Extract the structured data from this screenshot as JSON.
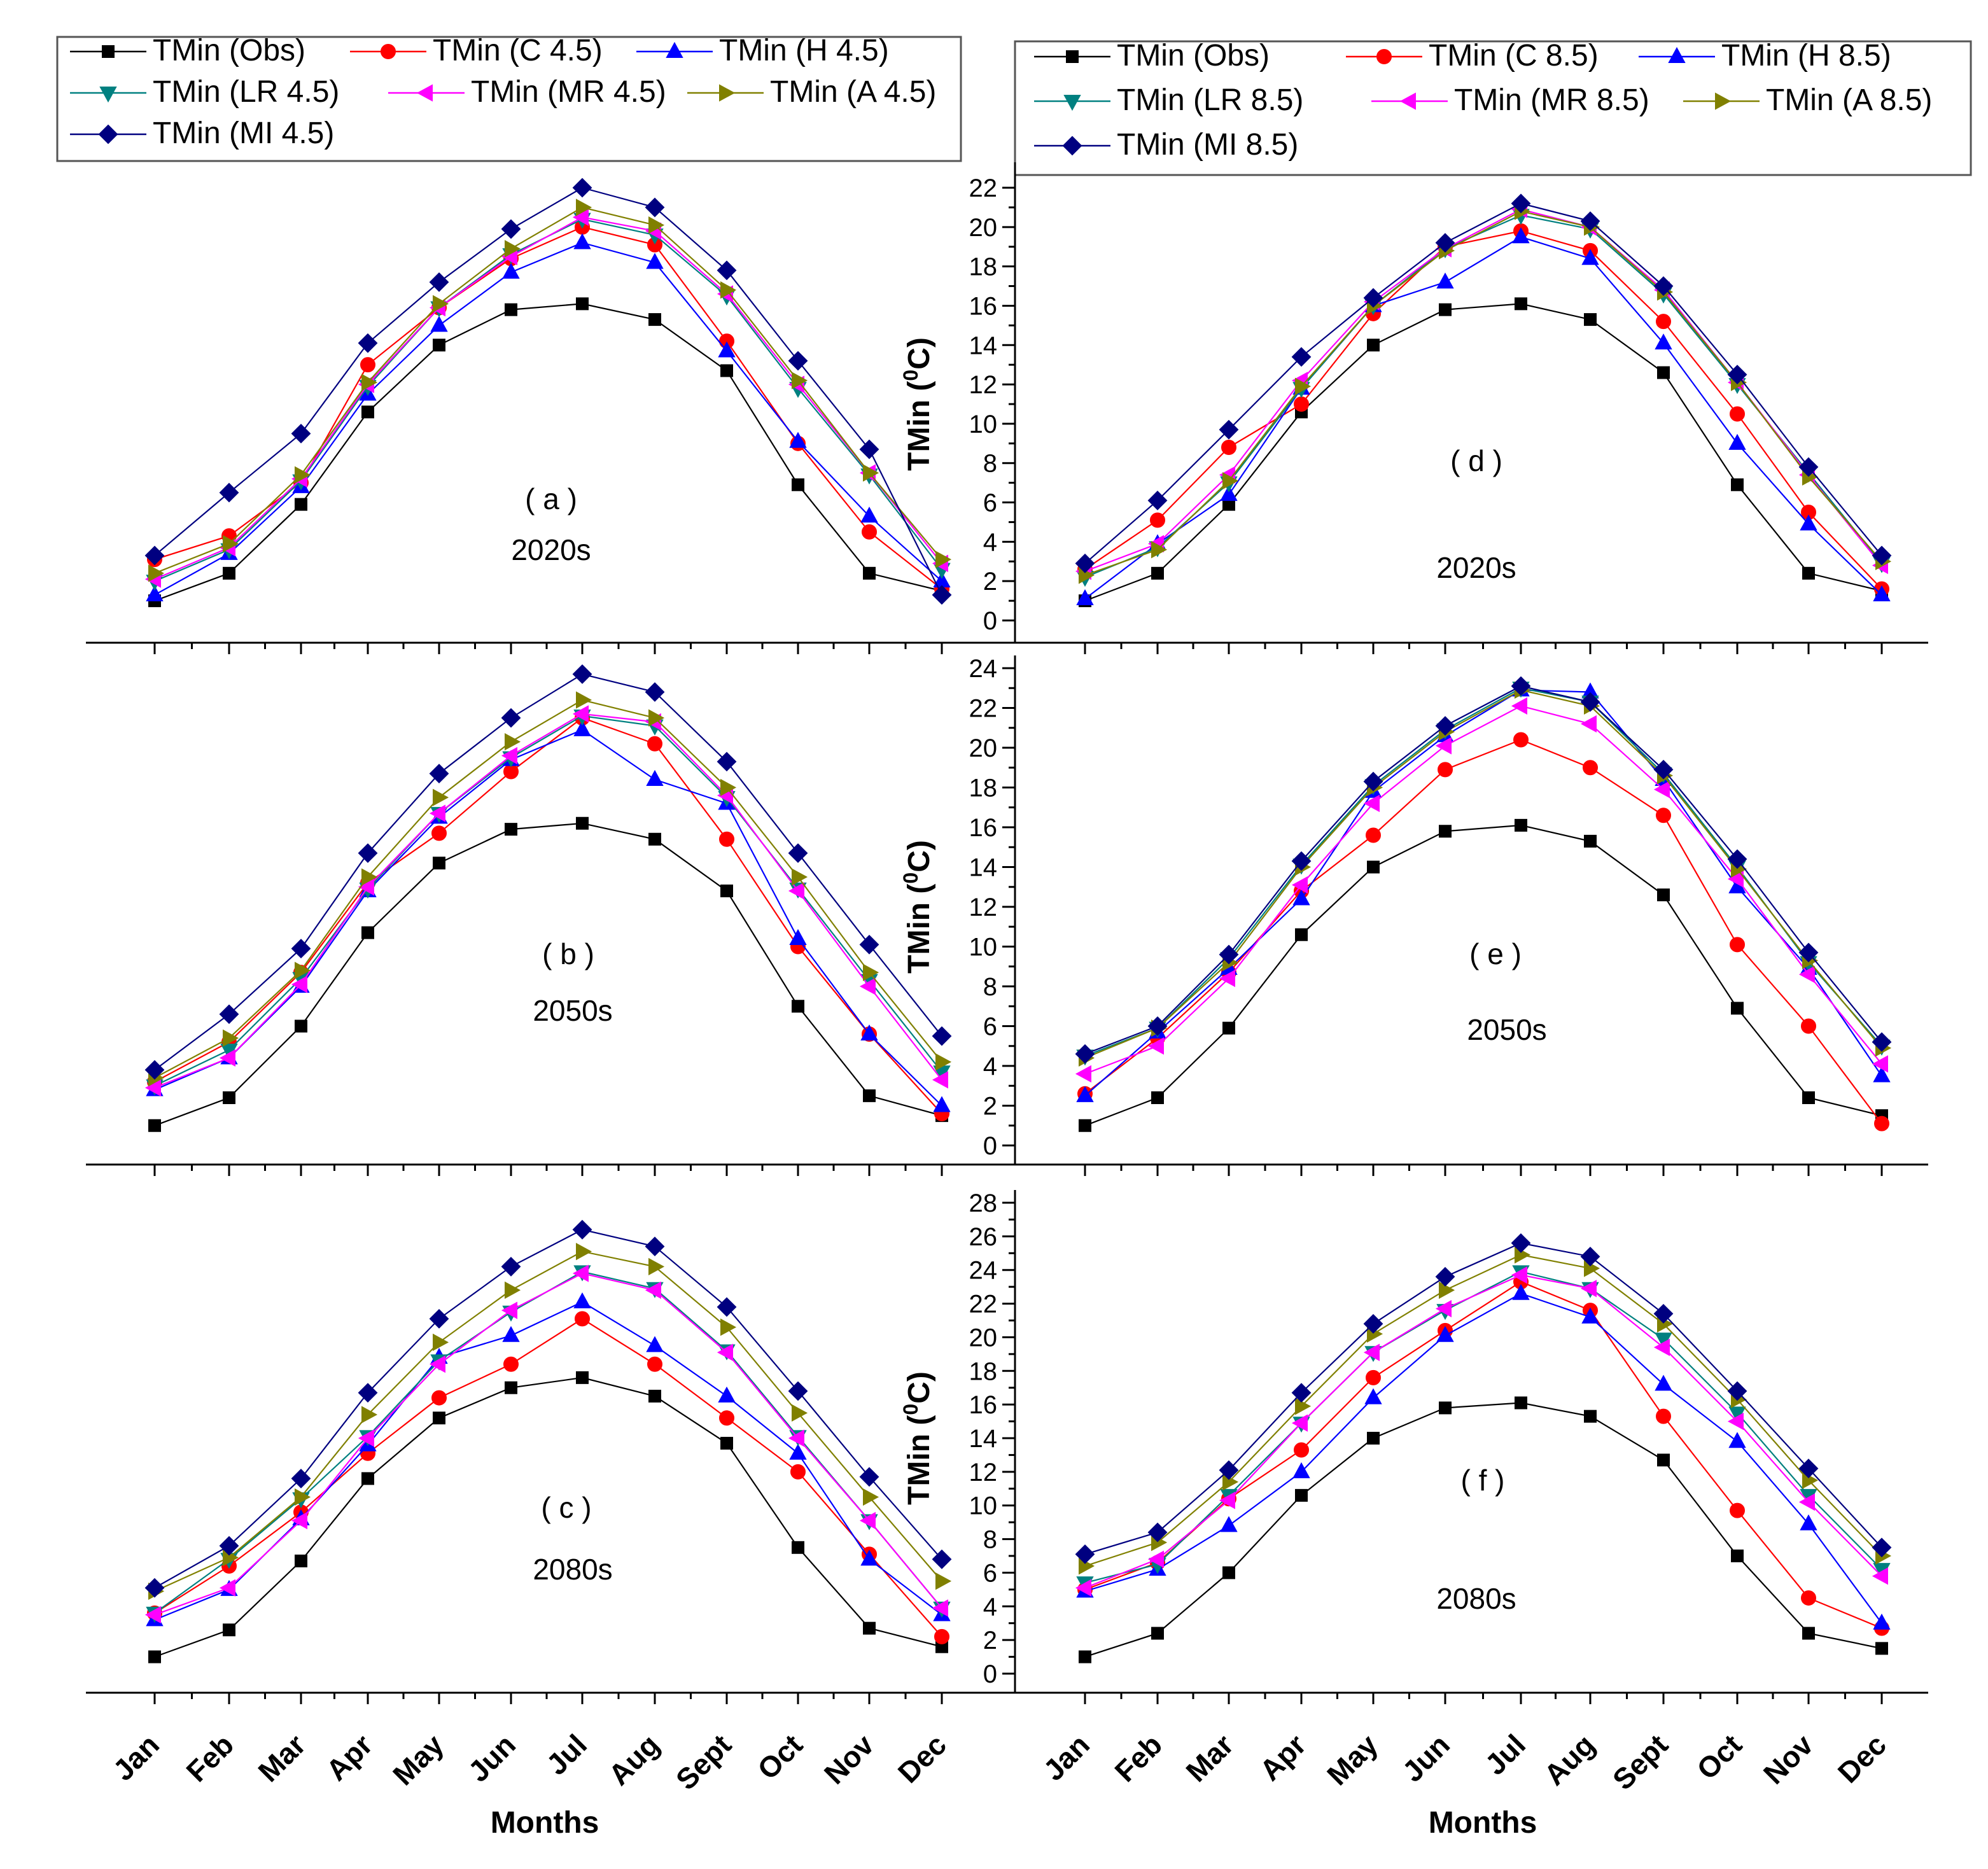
{
  "chart_data": {
    "type": "line",
    "months": [
      "Jan",
      "Feb",
      "Mar",
      "Apr",
      "May",
      "Jun",
      "Jul",
      "Aug",
      "Sept",
      "Oct",
      "Nov",
      "Dec"
    ],
    "xlabel": "Months",
    "ylabel": "TMin (0C)",
    "ylabel_main": "TMin (",
    "ylabel_sup": "0",
    "ylabel_end": "C)",
    "styles": {
      "Obs": {
        "color": "#000000",
        "marker": "square"
      },
      "C": {
        "color": "#ff0000",
        "marker": "circle"
      },
      "H": {
        "color": "#0000ff",
        "marker": "triangle-up"
      },
      "LR": {
        "color": "#008080",
        "marker": "triangle-down"
      },
      "MR": {
        "color": "#ff00ff",
        "marker": "triangle-left"
      },
      "A": {
        "color": "#808000",
        "marker": "triangle-right"
      },
      "MI": {
        "color": "#000080",
        "marker": "diamond"
      }
    },
    "legends": [
      {
        "scenario": "4.5",
        "entries": [
          {
            "key": "Obs",
            "label": "TMin (Obs)"
          },
          {
            "key": "C",
            "label": "TMin (C 4.5)"
          },
          {
            "key": "H",
            "label": "TMin (H 4.5)"
          },
          {
            "key": "LR",
            "label": "TMin (LR 4.5)"
          },
          {
            "key": "MR",
            "label": "TMin (MR 4.5)"
          },
          {
            "key": "A",
            "label": "TMin (A 4.5)"
          },
          {
            "key": "MI",
            "label": "TMin (MI 4.5)"
          }
        ]
      },
      {
        "scenario": "8.5",
        "entries": [
          {
            "key": "Obs",
            "label": "TMin (Obs)"
          },
          {
            "key": "C",
            "label": "TMin (C 8.5)"
          },
          {
            "key": "H",
            "label": "TMin (H 8.5)"
          },
          {
            "key": "LR",
            "label": "TMin (LR 8.5)"
          },
          {
            "key": "MR",
            "label": "TMin (MR 8.5)"
          },
          {
            "key": "A",
            "label": "TMin (A 8.5)"
          },
          {
            "key": "MI",
            "label": "TMin (MI 8.5)"
          }
        ]
      }
    ],
    "panels": [
      {
        "id": "a",
        "label": "( a )",
        "period": "2020s",
        "scenario": "4.5",
        "ylim": [
          0,
          22
        ],
        "series": {
          "Obs": [
            1.0,
            2.4,
            5.9,
            10.6,
            14.0,
            15.8,
            16.1,
            15.3,
            12.7,
            6.9,
            2.4,
            1.5
          ],
          "C": [
            3.1,
            4.3,
            7.0,
            13.0,
            15.9,
            18.4,
            20.0,
            19.1,
            14.2,
            9.0,
            4.5,
            1.6
          ],
          "H": [
            1.3,
            3.4,
            6.8,
            11.5,
            15.0,
            17.7,
            19.2,
            18.2,
            13.7,
            9.1,
            5.3,
            2.0
          ],
          "LR": [
            2.0,
            3.6,
            7.1,
            11.9,
            15.9,
            18.6,
            20.4,
            19.6,
            16.5,
            11.8,
            7.4,
            2.6
          ],
          "MR": [
            2.1,
            3.7,
            7.2,
            12.0,
            15.9,
            18.5,
            20.5,
            19.8,
            16.6,
            12.0,
            7.5,
            2.9
          ],
          "A": [
            2.4,
            3.9,
            7.4,
            12.1,
            16.1,
            18.9,
            21.0,
            20.1,
            16.8,
            12.2,
            7.5,
            3.1
          ],
          "MI": [
            3.3,
            6.5,
            9.5,
            14.1,
            17.2,
            19.9,
            22.0,
            21.0,
            17.8,
            13.2,
            8.7,
            1.3
          ]
        }
      },
      {
        "id": "d",
        "label": "( d )",
        "period": "2020s",
        "scenario": "8.5",
        "ylim": [
          0,
          22
        ],
        "series": {
          "Obs": [
            1.0,
            2.4,
            5.9,
            10.6,
            14.0,
            15.8,
            16.1,
            15.3,
            12.6,
            6.9,
            2.4,
            1.5
          ],
          "C": [
            2.6,
            5.1,
            8.8,
            11.0,
            15.6,
            19.0,
            19.8,
            18.8,
            15.2,
            10.5,
            5.5,
            1.6
          ],
          "H": [
            1.1,
            3.9,
            6.4,
            11.8,
            16.0,
            17.2,
            19.5,
            18.4,
            14.1,
            9.0,
            4.9,
            1.3
          ],
          "LR": [
            2.2,
            3.7,
            7.0,
            11.8,
            16.0,
            18.9,
            20.6,
            19.9,
            16.6,
            12.0,
            7.5,
            2.9
          ],
          "MR": [
            2.5,
            3.9,
            7.4,
            12.2,
            16.2,
            18.9,
            20.9,
            20.0,
            16.8,
            12.1,
            7.4,
            2.8
          ],
          "A": [
            2.3,
            3.6,
            7.1,
            11.9,
            16.0,
            18.8,
            20.8,
            20.0,
            16.7,
            12.1,
            7.3,
            3.0
          ],
          "MI": [
            2.9,
            6.1,
            9.7,
            13.4,
            16.4,
            19.2,
            21.2,
            20.3,
            17.0,
            12.5,
            7.8,
            3.3
          ]
        }
      },
      {
        "id": "b",
        "label": "( b )",
        "period": "2050s",
        "scenario": "4.5",
        "ylim": [
          0,
          24
        ],
        "series": {
          "Obs": [
            1.0,
            2.4,
            6.0,
            10.7,
            14.2,
            15.9,
            16.2,
            15.4,
            12.8,
            7.0,
            2.5,
            1.5
          ],
          "C": [
            3.2,
            5.2,
            8.7,
            13.2,
            15.7,
            18.8,
            21.5,
            20.2,
            15.4,
            10.0,
            5.6,
            1.6
          ],
          "H": [
            2.8,
            4.4,
            8.0,
            12.8,
            16.5,
            19.4,
            20.9,
            18.4,
            17.2,
            10.4,
            5.6,
            2.0
          ],
          "LR": [
            3.0,
            4.8,
            8.4,
            12.9,
            16.7,
            19.5,
            21.6,
            21.1,
            17.5,
            12.9,
            8.3,
            3.7
          ],
          "MR": [
            2.9,
            4.4,
            8.1,
            13.0,
            16.7,
            19.6,
            21.7,
            21.3,
            17.6,
            12.8,
            8.0,
            3.3
          ],
          "A": [
            3.4,
            5.4,
            8.8,
            13.5,
            17.5,
            20.3,
            22.4,
            21.5,
            18.0,
            13.5,
            8.7,
            4.2
          ],
          "MI": [
            3.8,
            6.6,
            9.9,
            14.7,
            18.7,
            21.5,
            23.7,
            22.8,
            19.3,
            14.7,
            10.1,
            5.5
          ]
        }
      },
      {
        "id": "e",
        "label": "( e )",
        "period": "2050s",
        "scenario": "8.5",
        "ylim": [
          0,
          24
        ],
        "series": {
          "Obs": [
            1.0,
            2.4,
            5.9,
            10.6,
            14.0,
            15.8,
            16.1,
            15.3,
            12.6,
            6.9,
            2.4,
            1.5
          ],
          "C": [
            2.6,
            5.4,
            8.7,
            12.8,
            15.6,
            18.9,
            20.4,
            19.0,
            16.6,
            10.1,
            6.0,
            1.1
          ],
          "H": [
            2.5,
            5.7,
            8.9,
            12.4,
            17.8,
            20.6,
            22.9,
            22.8,
            18.4,
            13.0,
            8.9,
            3.5
          ],
          "LR": [
            4.5,
            5.9,
            9.4,
            14.1,
            18.1,
            20.9,
            23.0,
            22.3,
            18.7,
            14.0,
            9.2,
            5.0
          ],
          "MR": [
            3.6,
            5.0,
            8.4,
            13.1,
            17.2,
            20.1,
            22.1,
            21.2,
            17.9,
            13.4,
            8.6,
            4.1
          ],
          "A": [
            4.4,
            5.9,
            9.2,
            14.0,
            18.0,
            20.8,
            22.9,
            22.1,
            18.6,
            13.9,
            9.3,
            4.9
          ],
          "MI": [
            4.6,
            6.0,
            9.6,
            14.3,
            18.3,
            21.1,
            23.1,
            22.3,
            18.9,
            14.4,
            9.7,
            5.2
          ]
        }
      },
      {
        "id": "c",
        "label": "( c )",
        "period": "2080s",
        "scenario": "4.5",
        "ylim": [
          0,
          28
        ],
        "series": {
          "Obs": [
            1.0,
            2.6,
            6.7,
            11.6,
            15.2,
            17.0,
            17.6,
            16.5,
            13.7,
            7.5,
            2.7,
            1.6
          ],
          "C": [
            3.6,
            6.4,
            9.6,
            13.1,
            16.4,
            18.4,
            21.1,
            18.4,
            15.2,
            12.0,
            7.1,
            2.2
          ],
          "H": [
            3.2,
            5.0,
            9.2,
            13.6,
            18.8,
            20.1,
            22.1,
            19.5,
            16.5,
            13.1,
            6.8,
            3.5
          ],
          "LR": [
            3.6,
            6.8,
            10.4,
            14.1,
            18.6,
            21.5,
            23.9,
            22.9,
            19.2,
            14.1,
            9.1,
            3.9
          ],
          "MR": [
            3.5,
            5.1,
            9.1,
            14.0,
            18.4,
            21.6,
            23.8,
            22.8,
            19.1,
            14.0,
            9.1,
            3.9
          ],
          "A": [
            4.9,
            6.9,
            10.5,
            15.4,
            19.7,
            22.8,
            25.1,
            24.2,
            20.6,
            15.5,
            10.5,
            5.5
          ],
          "MI": [
            5.1,
            7.6,
            11.6,
            16.7,
            21.1,
            24.2,
            26.4,
            25.4,
            21.8,
            16.8,
            11.7,
            6.8
          ]
        }
      },
      {
        "id": "f",
        "label": "( f )",
        "period": "2080s",
        "scenario": "8.5",
        "ylim": [
          0,
          28
        ],
        "series": {
          "Obs": [
            1.0,
            2.4,
            6.0,
            10.6,
            14.0,
            15.8,
            16.1,
            15.3,
            12.7,
            7.0,
            2.4,
            1.5
          ],
          "C": [
            5.0,
            6.6,
            10.4,
            13.3,
            17.6,
            20.4,
            23.3,
            21.6,
            15.3,
            9.7,
            4.5,
            2.7
          ],
          "H": [
            4.9,
            6.2,
            8.8,
            12.0,
            16.4,
            20.1,
            22.6,
            21.2,
            17.2,
            13.8,
            8.9,
            3.0
          ],
          "LR": [
            5.4,
            6.5,
            10.6,
            14.9,
            19.1,
            21.6,
            23.9,
            22.9,
            19.9,
            15.5,
            10.6,
            6.2
          ],
          "MR": [
            5.1,
            6.8,
            10.3,
            14.9,
            19.1,
            21.7,
            23.7,
            22.9,
            19.4,
            15.0,
            10.2,
            5.8
          ],
          "A": [
            6.4,
            7.8,
            11.4,
            15.9,
            20.2,
            22.8,
            24.9,
            24.1,
            20.8,
            16.3,
            11.5,
            7.0
          ],
          "MI": [
            7.1,
            8.4,
            12.1,
            16.7,
            20.8,
            23.6,
            25.6,
            24.8,
            21.4,
            16.8,
            12.2,
            7.5
          ]
        }
      }
    ]
  }
}
